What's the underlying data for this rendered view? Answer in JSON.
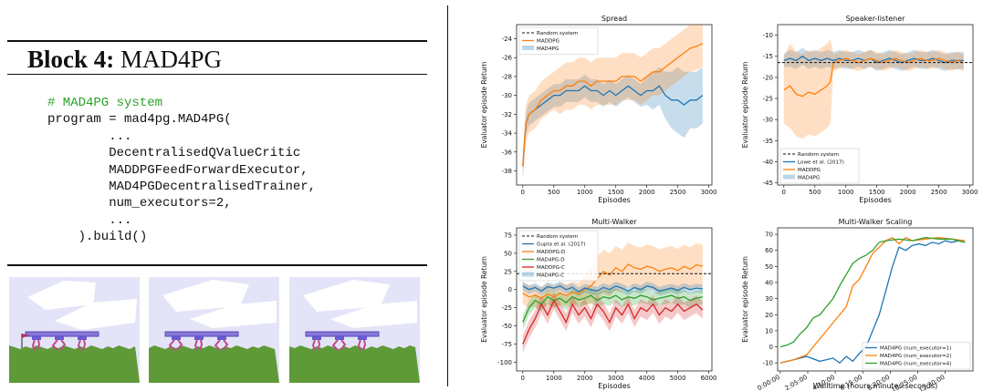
{
  "block": {
    "label": "Block 4:",
    "name": "MAD4PG"
  },
  "code_lines": [
    "# MAD4PG system",
    "program = mad4pg.MAD4PG(",
    "        ...",
    "        DecentralisedQValueCritic",
    "        MADDPGFeedForwardExecutor,",
    "        MAD4PGDecentralisedTrainer,",
    "        num_executors=2,",
    "        ...",
    "    ).build()"
  ],
  "colors": {
    "blue": "#1f77b4",
    "orange": "#ff7f0e",
    "green": "#2ca02c",
    "red": "#d62728",
    "code_comment": "#2aa02a",
    "sky": "#e4e4f8",
    "grass": "#5e9a38",
    "walker": "#8878d8"
  },
  "walker_panels": 3,
  "chart_data": [
    {
      "type": "line",
      "title": "Spread",
      "xlabel": "Episodes",
      "ylabel": "Evaluator episode Return",
      "xlim": [
        -100,
        3050
      ],
      "ylim": [
        -39.5,
        -22.5
      ],
      "xticks": [
        0,
        500,
        1000,
        1500,
        2000,
        2500,
        3000
      ],
      "yticks": [
        -38,
        -36,
        -34,
        -32,
        -30,
        -28,
        -26,
        -24
      ],
      "legend": [
        "Random system",
        "MADDPG",
        "MAD4PG"
      ],
      "legend_position": "upper-left",
      "series": [
        {
          "name": "Random system",
          "color": "#1f77b4",
          "x": [
            0,
            50,
            100,
            200,
            300,
            400,
            500,
            600,
            700,
            800,
            900,
            1000,
            1100,
            1200,
            1300,
            1400,
            1500,
            1600,
            1700,
            1800,
            1900,
            2000,
            2100,
            2200,
            2300,
            2400,
            2500,
            2600,
            2700,
            2800,
            2900
          ],
          "y": [
            -37.5,
            -33,
            -32,
            -31.5,
            -31,
            -30.5,
            -30,
            -30,
            -29.5,
            -29.5,
            -29.5,
            -29,
            -29.5,
            -29.5,
            -30,
            -29.5,
            -30,
            -29.5,
            -29,
            -29.5,
            -30,
            -29.5,
            -29.5,
            -29,
            -30,
            -30.5,
            -30.5,
            -31,
            -30.5,
            -30.5,
            -30
          ],
          "band": [
            1.2,
            1.2,
            1.2,
            1.2,
            1.2,
            1.2,
            1.2,
            1.2,
            1.2,
            1.2,
            1.2,
            1.2,
            1.2,
            1.2,
            1.2,
            1.2,
            1.2,
            1.2,
            1.2,
            1.2,
            1.2,
            1.5,
            2,
            2,
            2.5,
            3,
            3.5,
            3.5,
            3,
            3,
            3
          ]
        },
        {
          "name": "MADDPG",
          "color": "#ff7f0e",
          "x": [
            0,
            50,
            100,
            200,
            300,
            400,
            500,
            600,
            700,
            800,
            900,
            1000,
            1100,
            1200,
            1300,
            1400,
            1500,
            1600,
            1700,
            1800,
            1900,
            2000,
            2100,
            2200,
            2300,
            2400,
            2500,
            2600,
            2700,
            2800,
            2900
          ],
          "y": [
            -37.5,
            -33,
            -32,
            -31.5,
            -30.5,
            -30,
            -29.5,
            -29.5,
            -29,
            -29,
            -28.5,
            -28.5,
            -29,
            -28.5,
            -28.5,
            -28.5,
            -28.5,
            -28,
            -28,
            -28,
            -28.5,
            -28,
            -27.5,
            -27.5,
            -27,
            -26.5,
            -26,
            -25.5,
            -25,
            -24.8,
            -24.5
          ],
          "band": [
            1.5,
            2,
            2,
            2,
            2,
            2,
            2,
            2.5,
            2.5,
            2.5,
            2.5,
            2.5,
            2.5,
            2.5,
            2.5,
            2.5,
            2.5,
            2.5,
            2.5,
            2.5,
            2.5,
            2.5,
            2.5,
            2.5,
            2.5,
            2.5,
            2.5,
            2.5,
            2.5,
            2.5,
            2.5
          ]
        }
      ]
    },
    {
      "type": "line",
      "title": "Speaker-listener",
      "xlabel": "Episodes",
      "ylabel": "Evaluator episode Return",
      "xlim": [
        -100,
        3050
      ],
      "ylim": [
        -45.5,
        -7.5
      ],
      "xticks": [
        0,
        500,
        1000,
        1500,
        2000,
        2500,
        3000
      ],
      "yticks": [
        -45,
        -40,
        -35,
        -30,
        -25,
        -20,
        -15,
        -10
      ],
      "hline": -16.5,
      "legend": [
        "Random system",
        "Lowe et al. (2017)",
        "MADDPG",
        "MAD4PG"
      ],
      "legend_position": "lower-left",
      "series": [
        {
          "name": "Lowe et al. (2017)",
          "color": "#1f77b4",
          "x": [
            0,
            100,
            200,
            300,
            400,
            500,
            600,
            700,
            800,
            900,
            1000,
            1100,
            1200,
            1300,
            1400,
            1500,
            1600,
            1700,
            1800,
            1900,
            2000,
            2100,
            2200,
            2300,
            2400,
            2500,
            2600,
            2700,
            2800,
            2900
          ],
          "y": [
            -16,
            -15.5,
            -16,
            -15,
            -16,
            -15.5,
            -16,
            -15.5,
            -16,
            -15.5,
            -16,
            -16,
            -15.5,
            -16,
            -15.5,
            -16.5,
            -16,
            -15.5,
            -16,
            -16.5,
            -16,
            -15.5,
            -16,
            -16,
            -15.5,
            -16,
            -16.5,
            -16,
            -16,
            -16
          ],
          "band": [
            1.5,
            2,
            2,
            2,
            2,
            2,
            2,
            2,
            2,
            2,
            2,
            2,
            2,
            2,
            2,
            2,
            2,
            2,
            2,
            2,
            2,
            2,
            2,
            2,
            2,
            2,
            2,
            2,
            2,
            2
          ]
        },
        {
          "name": "MADDPG",
          "color": "#ff7f0e",
          "x": [
            0,
            100,
            200,
            300,
            400,
            500,
            600,
            700,
            750,
            800,
            900,
            1000,
            1100,
            1200,
            1300,
            1400,
            1500,
            1600,
            1700,
            1800,
            1900,
            2000,
            2100,
            2200,
            2300,
            2400,
            2500,
            2600,
            2700,
            2800,
            2900
          ],
          "y": [
            -23,
            -22,
            -24,
            -24.5,
            -23.5,
            -24,
            -23,
            -22,
            -21,
            -16.5,
            -16,
            -15.5,
            -16,
            -16.5,
            -16,
            -15.5,
            -16,
            -16.5,
            -16,
            -15.5,
            -16,
            -16.5,
            -16,
            -15.5,
            -16,
            -16,
            -15.5,
            -16,
            -16.5,
            -16,
            -16.5
          ],
          "band": [
            8,
            10,
            10,
            10,
            10,
            10,
            10,
            10,
            10,
            2,
            2,
            2,
            2,
            2,
            2,
            2,
            2,
            2,
            2,
            2,
            2,
            2,
            2,
            2,
            2,
            2,
            2,
            2,
            2,
            2,
            2
          ]
        }
      ]
    },
    {
      "type": "line",
      "title": "Multi-Walker",
      "xlabel": "Episodes",
      "ylabel": "Evaluator episode Return",
      "xlim": [
        -200,
        6100
      ],
      "ylim": [
        -112,
        85
      ],
      "xticks": [
        0,
        1000,
        2000,
        3000,
        4000,
        5000,
        6000
      ],
      "yticks": [
        -100,
        -75,
        -50,
        -25,
        0,
        25,
        50,
        75
      ],
      "hline": 22,
      "legend": [
        "Random system",
        "Gupta et al. (2017)",
        "MADDPG-D",
        "MAD4PG-D",
        "MADDPG-C",
        "MAD4PG-C"
      ],
      "legend_position": "upper-left",
      "series": [
        {
          "name": "MADDPG-D",
          "color": "#ff7f0e",
          "x": [
            0,
            200,
            400,
            600,
            800,
            1000,
            1200,
            1400,
            1600,
            1800,
            2000,
            2200,
            2400,
            2600,
            2800,
            3000,
            3200,
            3400,
            3600,
            3800,
            4000,
            4200,
            4400,
            4600,
            4800,
            5000,
            5200,
            5400,
            5600,
            5800
          ],
          "y": [
            -5,
            -10,
            -8,
            -12,
            -6,
            -10,
            -5,
            -8,
            -4,
            -6,
            0,
            5,
            15,
            25,
            20,
            30,
            25,
            35,
            30,
            28,
            32,
            30,
            25,
            28,
            30,
            26,
            32,
            28,
            34,
            32
          ],
          "band": [
            15,
            15,
            15,
            15,
            15,
            15,
            15,
            15,
            15,
            15,
            20,
            25,
            30,
            30,
            30,
            30,
            30,
            30,
            30,
            30,
            30,
            30,
            30,
            30,
            30,
            30,
            30,
            30,
            30,
            30
          ]
        },
        {
          "name": "Gupta et al. (2017)",
          "color": "#1f77b4",
          "x": [
            0,
            200,
            400,
            600,
            800,
            1000,
            1200,
            1400,
            1600,
            1800,
            2000,
            2200,
            2400,
            2600,
            2800,
            3000,
            3200,
            3400,
            3600,
            3800,
            4000,
            4200,
            4400,
            4600,
            4800,
            5000,
            5200,
            5400,
            5600,
            5800
          ],
          "y": [
            5,
            0,
            3,
            -2,
            4,
            2,
            5,
            0,
            3,
            -3,
            2,
            0,
            -2,
            3,
            0,
            5,
            2,
            -2,
            3,
            0,
            5,
            3,
            -2,
            0,
            2,
            -1,
            3,
            0,
            2,
            1
          ],
          "band": [
            6,
            6,
            6,
            6,
            6,
            6,
            6,
            6,
            6,
            6,
            6,
            6,
            6,
            6,
            6,
            6,
            6,
            6,
            6,
            6,
            6,
            6,
            6,
            6,
            6,
            6,
            6,
            6,
            6,
            6
          ]
        },
        {
          "name": "MAD4PG-D",
          "color": "#2ca02c",
          "x": [
            0,
            200,
            400,
            600,
            800,
            1000,
            1200,
            1400,
            1600,
            1800,
            2000,
            2200,
            2400,
            2600,
            2800,
            3000,
            3200,
            3400,
            3600,
            3800,
            4000,
            4200,
            4400,
            4600,
            4800,
            5000,
            5200,
            5400,
            5600,
            5800
          ],
          "y": [
            -45,
            -25,
            -15,
            -20,
            -10,
            -15,
            -12,
            -18,
            -10,
            -14,
            -12,
            -8,
            -15,
            -10,
            -12,
            -8,
            -14,
            -10,
            -12,
            -8,
            -10,
            -14,
            -12,
            -10,
            -8,
            -12,
            -10,
            -15,
            -12,
            -10
          ],
          "band": [
            10,
            10,
            10,
            10,
            10,
            10,
            10,
            10,
            10,
            10,
            10,
            10,
            10,
            10,
            10,
            10,
            10,
            10,
            10,
            10,
            10,
            10,
            10,
            10,
            10,
            10,
            10,
            10,
            10,
            10
          ]
        },
        {
          "name": "MADDPG-C",
          "color": "#d62728",
          "x": [
            0,
            200,
            400,
            600,
            800,
            1000,
            1200,
            1400,
            1600,
            1800,
            2000,
            2200,
            2400,
            2600,
            2800,
            3000,
            3200,
            3400,
            3600,
            3800,
            4000,
            4200,
            4400,
            4600,
            4800,
            5000,
            5200,
            5400,
            5600,
            5800
          ],
          "y": [
            -75,
            -55,
            -40,
            -20,
            -35,
            -15,
            -30,
            -45,
            -20,
            -35,
            -25,
            -40,
            -20,
            -30,
            -45,
            -25,
            -35,
            -20,
            -40,
            -25,
            -30,
            -20,
            -35,
            -25,
            -30,
            -20,
            -30,
            -25,
            -20,
            -28
          ],
          "band": [
            12,
            12,
            12,
            12,
            12,
            12,
            12,
            12,
            12,
            12,
            12,
            12,
            12,
            12,
            12,
            12,
            12,
            12,
            12,
            12,
            12,
            12,
            12,
            12,
            12,
            12,
            12,
            12,
            12,
            12
          ]
        }
      ]
    },
    {
      "type": "line",
      "title": "Multi-Walker Scaling",
      "xlabel": "Walltime (hours:minutes:seconds)",
      "ylabel": "Evaluator episode Return",
      "xlim": [
        -0.2,
        14.6
      ],
      "ylim": [
        -15,
        74
      ],
      "xticks": [
        0,
        2.0833,
        4.1667,
        6.25,
        8.3333,
        10.4167,
        12.5
      ],
      "xtick_labels": [
        "0:00:00",
        "2:05:00",
        "4:10:00",
        "6:15:00",
        "8:20:00",
        "10:25:00",
        "12:30:00"
      ],
      "yticks": [
        -10,
        0,
        10,
        20,
        30,
        40,
        50,
        60,
        70
      ],
      "legend": [
        "MAD4PG (num_executor=1)",
        "MAD4PG (num_executor=2)",
        "MAD4PG (num_executor=4)"
      ],
      "legend_position": "lower-right",
      "series": [
        {
          "name": "MAD4PG (num_executor=1)",
          "color": "#1f77b4",
          "x": [
            0,
            1,
            2,
            3,
            4,
            4.5,
            5,
            5.5,
            6,
            6.5,
            7,
            7.5,
            8,
            8.5,
            9,
            9.5,
            10,
            10.5,
            11,
            11.5,
            12,
            12.5,
            13,
            13.5,
            14
          ],
          "y": [
            -10,
            -8,
            -6,
            -9,
            -7,
            -10,
            -6,
            -9,
            -4,
            0,
            10,
            20,
            35,
            50,
            62,
            60,
            63,
            64,
            63,
            65,
            64,
            66,
            65,
            66,
            65
          ]
        },
        {
          "name": "MAD4PG (num_executor=2)",
          "color": "#ff7f0e",
          "x": [
            0,
            1,
            2,
            2.5,
            3,
            3.5,
            4,
            4.5,
            5,
            5.5,
            6,
            6.5,
            7,
            7.5,
            8,
            8.5,
            9,
            9.5,
            10,
            11,
            12,
            13,
            14
          ],
          "y": [
            -10,
            -8,
            -5,
            0,
            5,
            10,
            15,
            20,
            25,
            38,
            42,
            50,
            58,
            62,
            66,
            68,
            64,
            68,
            66,
            67,
            68,
            67,
            66
          ]
        },
        {
          "name": "MAD4PG (num_executor=4)",
          "color": "#2ca02c",
          "x": [
            0,
            0.5,
            1,
            1.5,
            2,
            2.5,
            3,
            3.5,
            4,
            4.5,
            5,
            5.5,
            6,
            6.5,
            7,
            7.5,
            8,
            9,
            10,
            11,
            12,
            13,
            14
          ],
          "y": [
            0,
            1,
            3,
            8,
            12,
            18,
            20,
            25,
            30,
            38,
            45,
            52,
            55,
            57,
            60,
            65,
            66,
            67,
            66,
            68,
            67,
            67,
            65
          ]
        }
      ]
    }
  ]
}
